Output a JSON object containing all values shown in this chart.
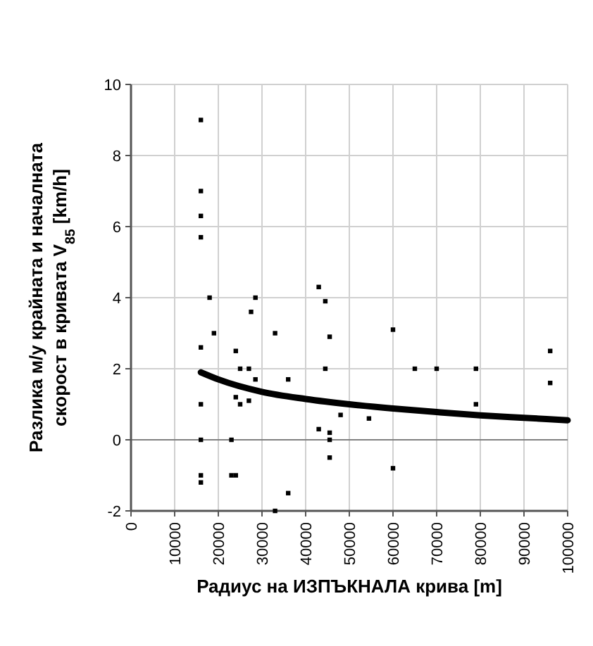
{
  "chart_data": {
    "type": "scatter",
    "xlabel": "Радиус на ИЗПЪКНАЛА крива [m]",
    "ylabel": "Разлика м/у крайната и началната скорост в кривата V$_{85}$ [km/h]",
    "xlim": [
      0,
      100000
    ],
    "xticks": [
      0,
      10000,
      20000,
      30000,
      40000,
      50000,
      60000,
      70000,
      80000,
      90000,
      100000
    ],
    "ylim": [
      -2,
      10
    ],
    "yticks": [
      -2,
      0,
      2,
      4,
      6,
      8,
      10
    ],
    "grid": true,
    "series": [
      {
        "color": "#000000",
        "marker": "square",
        "x": [
          16000,
          16000,
          16000,
          16000,
          16000,
          16000,
          16000,
          16000,
          16000,
          18000,
          19000,
          23000,
          23000,
          24000,
          24000,
          24000,
          25000,
          25000,
          27000,
          27000,
          27500,
          28500,
          28500,
          33000,
          33000,
          36000,
          36000,
          43000,
          43000,
          44500,
          44500,
          45500,
          45500,
          45500,
          45500,
          48000,
          54500,
          60000,
          60000,
          65000,
          70000,
          79000,
          79000,
          96000,
          96000
        ],
        "values": [
          9.0,
          7.0,
          6.3,
          5.7,
          2.6,
          1.0,
          0,
          -1.0,
          -1.2,
          4.0,
          3.0,
          0,
          -1.0,
          2.5,
          1.2,
          -1.0,
          2.0,
          1.0,
          2.0,
          1.1,
          3.6,
          4.0,
          1.7,
          3.0,
          -2.0,
          1.7,
          -1.5,
          4.3,
          0.3,
          3.9,
          2.0,
          2.9,
          0.2,
          0,
          -0.5,
          0.7,
          0.6,
          3.1,
          -0.8,
          2.0,
          2.0,
          2.0,
          1.0,
          2.5,
          1.6
        ]
      },
      {
        "type": "line",
        "color": "#000000",
        "marker": "none",
        "line_style": "solid",
        "x": [
          16000,
          20000,
          30000,
          40000,
          50000,
          60000,
          70000,
          80000,
          90000,
          100000
        ],
        "values": [
          1.9,
          1.7,
          1.35,
          1.15,
          1.0,
          0.88,
          0.78,
          0.69,
          0.62,
          0.55
        ]
      }
    ]
  }
}
